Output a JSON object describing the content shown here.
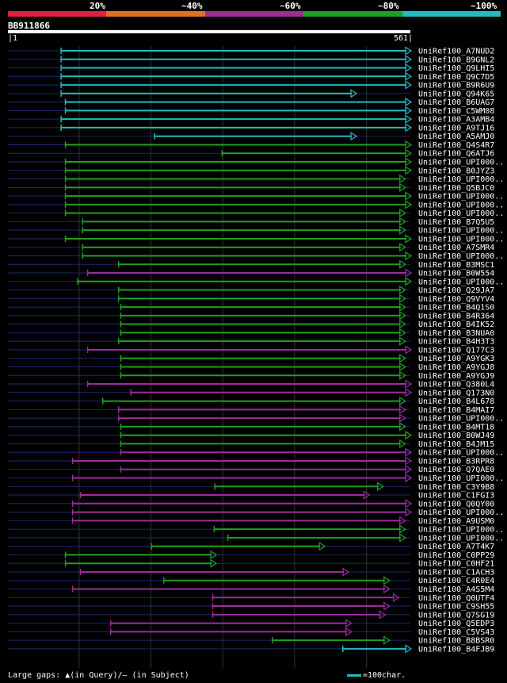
{
  "title": "BB911866",
  "colors": {
    "background": "#000000",
    "query": "#ffffff",
    "baseline": "#1c2a6c",
    "grid": "#333333",
    "seg_20": "#e0203c",
    "seg_40": "#e07020",
    "seg_60": "#9c2c9c",
    "seg_80": "#20a020",
    "seg_100": "#22bcc0"
  },
  "legend": {
    "labels": [
      "20%",
      "~40%",
      "~60%",
      "~80%",
      "~100%"
    ]
  },
  "scale": {
    "start_label": "|1",
    "end_label": "561|"
  },
  "footer": {
    "gaps_text": "Large gaps: ▲(in Query)/– (in Subject)",
    "scale_text": "=100char."
  },
  "chart_data": {
    "type": "alignment-overview",
    "query_length": 561,
    "xlim": [
      1,
      561
    ],
    "hits": [
      {
        "name": "UniRef100_A7NUD2",
        "start": 75,
        "end": 561,
        "color": "c"
      },
      {
        "name": "UniRef100_B9GNL2",
        "start": 75,
        "end": 561,
        "color": "c"
      },
      {
        "name": "UniRef100_Q9LHI5",
        "start": 75,
        "end": 561,
        "color": "c"
      },
      {
        "name": "UniRef100_Q9C7D5",
        "start": 75,
        "end": 561,
        "color": "c"
      },
      {
        "name": "UniRef100_B9R6U9",
        "start": 75,
        "end": 561,
        "color": "c"
      },
      {
        "name": "UniRef100_Q94K65",
        "start": 75,
        "end": 485,
        "color": "c"
      },
      {
        "name": "UniRef100_B6UAG7",
        "start": 81,
        "end": 561,
        "color": "c"
      },
      {
        "name": "UniRef100_C5WM08",
        "start": 81,
        "end": 561,
        "color": "c"
      },
      {
        "name": "UniRef100_A3AMB4",
        "start": 75,
        "end": 561,
        "color": "c"
      },
      {
        "name": "UniRef100_A9TJ16",
        "start": 75,
        "end": 561,
        "color": "c"
      },
      {
        "name": "UniRef100_A5AMJ0",
        "start": 205,
        "end": 485,
        "color": "c"
      },
      {
        "name": "UniRef100_Q4S4R7",
        "start": 81,
        "end": 561,
        "color": "g"
      },
      {
        "name": "UniRef100_Q6ATJ6",
        "start": 299,
        "end": 561,
        "color": "g"
      },
      {
        "name": "UniRef100_UPI000..",
        "start": 81,
        "end": 561,
        "color": "g"
      },
      {
        "name": "UniRef100_B0JYZ3",
        "start": 81,
        "end": 561,
        "color": "g"
      },
      {
        "name": "UniRef100_UPI000..",
        "start": 81,
        "end": 553,
        "color": "g"
      },
      {
        "name": "UniRef100_Q5BJC0",
        "start": 81,
        "end": 553,
        "color": "g"
      },
      {
        "name": "UniRef100_UPI000..",
        "start": 81,
        "end": 561,
        "color": "g"
      },
      {
        "name": "UniRef100_UPI000..",
        "start": 81,
        "end": 561,
        "color": "g"
      },
      {
        "name": "UniRef100_UPI000..",
        "start": 81,
        "end": 553,
        "color": "g"
      },
      {
        "name": "UniRef100_B7Q5U5",
        "start": 105,
        "end": 553,
        "color": "g"
      },
      {
        "name": "UniRef100_UPI000..",
        "start": 105,
        "end": 553,
        "color": "g"
      },
      {
        "name": "UniRef100_UPI000..",
        "start": 81,
        "end": 561,
        "color": "g"
      },
      {
        "name": "UniRef100_A7SMR4",
        "start": 105,
        "end": 553,
        "color": "g"
      },
      {
        "name": "UniRef100_UPI000..",
        "start": 105,
        "end": 561,
        "color": "g"
      },
      {
        "name": "UniRef100_B3MSC1",
        "start": 155,
        "end": 553,
        "color": "g"
      },
      {
        "name": "UniRef100_B0W554",
        "start": 112,
        "end": 561,
        "color": "m"
      },
      {
        "name": "UniRef100_UPI000..",
        "start": 98,
        "end": 561,
        "color": "g"
      },
      {
        "name": "UniRef100_Q29JA7",
        "start": 155,
        "end": 553,
        "color": "g"
      },
      {
        "name": "UniRef100_Q9VYV4",
        "start": 155,
        "end": 553,
        "color": "g"
      },
      {
        "name": "UniRef100_B4Q1S0",
        "start": 158,
        "end": 553,
        "color": "g"
      },
      {
        "name": "UniRef100_B4R364",
        "start": 158,
        "end": 553,
        "color": "g"
      },
      {
        "name": "UniRef100_B4IK52",
        "start": 158,
        "end": 553,
        "color": "g"
      },
      {
        "name": "UniRef100_B3NUA0",
        "start": 158,
        "end": 553,
        "color": "g"
      },
      {
        "name": "UniRef100_B4H3T3",
        "start": 155,
        "end": 553,
        "color": "g"
      },
      {
        "name": "UniRef100_Q177C3",
        "start": 112,
        "end": 561,
        "color": "m"
      },
      {
        "name": "UniRef100_A9YGK3",
        "start": 158,
        "end": 553,
        "color": "g"
      },
      {
        "name": "UniRef100_A9YGJ8",
        "start": 158,
        "end": 553,
        "color": "g"
      },
      {
        "name": "UniRef100_A9YGJ9",
        "start": 158,
        "end": 553,
        "color": "g"
      },
      {
        "name": "UniRef100_Q380L4",
        "start": 112,
        "end": 561,
        "color": "m"
      },
      {
        "name": "UniRef100_Q173N0",
        "start": 172,
        "end": 561,
        "color": "m"
      },
      {
        "name": "UniRef100_B4L678",
        "start": 133,
        "end": 553,
        "color": "g"
      },
      {
        "name": "UniRef100_B4MAI7",
        "start": 155,
        "end": 553,
        "color": "m"
      },
      {
        "name": "UniRef100_UPI000..",
        "start": 155,
        "end": 553,
        "color": "m"
      },
      {
        "name": "UniRef100_B4MT18",
        "start": 158,
        "end": 553,
        "color": "g"
      },
      {
        "name": "UniRef100_B0WJ49",
        "start": 158,
        "end": 561,
        "color": "g"
      },
      {
        "name": "UniRef100_B4JM15",
        "start": 158,
        "end": 553,
        "color": "g"
      },
      {
        "name": "UniRef100_UPI000..",
        "start": 158,
        "end": 561,
        "color": "m"
      },
      {
        "name": "UniRef100_B3RPR8",
        "start": 91,
        "end": 561,
        "color": "m"
      },
      {
        "name": "UniRef100_Q7QAE0",
        "start": 158,
        "end": 561,
        "color": "m"
      },
      {
        "name": "UniRef100_UPI000..",
        "start": 91,
        "end": 561,
        "color": "m"
      },
      {
        "name": "UniRef100_C3Y9B8",
        "start": 289,
        "end": 522,
        "color": "g"
      },
      {
        "name": "UniRef100_C1FGI3",
        "start": 102,
        "end": 503,
        "color": "m"
      },
      {
        "name": "UniRef100_Q0QY00",
        "start": 91,
        "end": 561,
        "color": "m"
      },
      {
        "name": "UniRef100_UPI000..",
        "start": 91,
        "end": 561,
        "color": "m"
      },
      {
        "name": "UniRef100_A9USM0",
        "start": 91,
        "end": 553,
        "color": "m"
      },
      {
        "name": "UniRef100_UPI000..",
        "start": 288,
        "end": 553,
        "color": "g"
      },
      {
        "name": "UniRef100_UPI000..",
        "start": 307,
        "end": 553,
        "color": "g"
      },
      {
        "name": "UniRef100_A7T4K7",
        "start": 201,
        "end": 441,
        "color": "g"
      },
      {
        "name": "UniRef100_C0PP29",
        "start": 81,
        "end": 290,
        "color": "g"
      },
      {
        "name": "UniRef100_C0HF21",
        "start": 81,
        "end": 290,
        "color": "g"
      },
      {
        "name": "UniRef100_C1ACH3",
        "start": 102,
        "end": 474,
        "color": "m"
      },
      {
        "name": "UniRef100_C4R0E4",
        "start": 218,
        "end": 531,
        "color": "g"
      },
      {
        "name": "UniRef100_A4S5M4",
        "start": 91,
        "end": 531,
        "color": "m"
      },
      {
        "name": "UniRef100_Q0UTF4",
        "start": 286,
        "end": 544,
        "color": "m"
      },
      {
        "name": "UniRef100_C9SH55",
        "start": 286,
        "end": 531,
        "color": "m"
      },
      {
        "name": "UniRef100_Q7SG19",
        "start": 286,
        "end": 525,
        "color": "m"
      },
      {
        "name": "UniRef100_Q5EDP3",
        "start": 144,
        "end": 478,
        "color": "m"
      },
      {
        "name": "UniRef100_C5VS43",
        "start": 144,
        "end": 478,
        "color": "m"
      },
      {
        "name": "UniRef100_B8BSR0",
        "start": 369,
        "end": 531,
        "color": "g"
      },
      {
        "name": "UniRef100_B4FJB9",
        "start": 467,
        "end": 561,
        "color": "c"
      }
    ]
  }
}
